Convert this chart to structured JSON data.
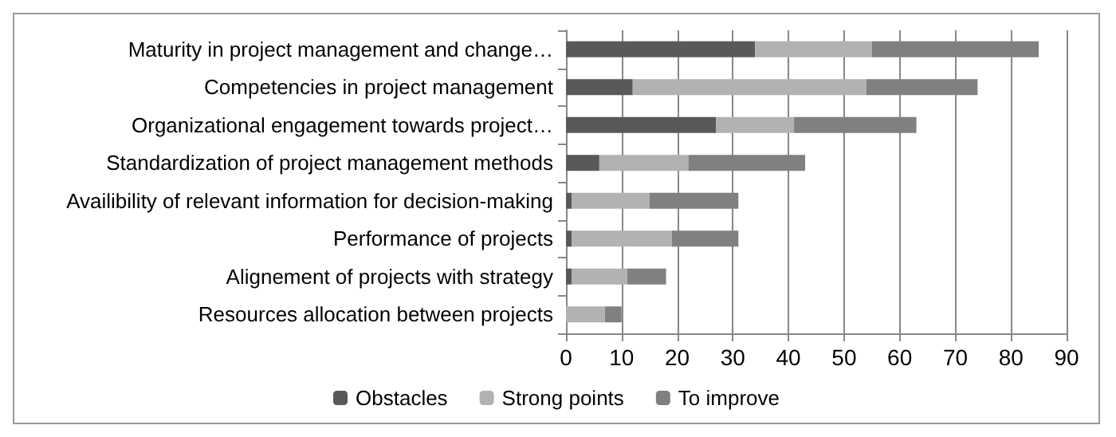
{
  "chart_data": {
    "type": "bar",
    "orientation": "horizontal",
    "stacked": true,
    "categories": [
      "Maturity in project management and change…",
      "Competencies in project management",
      "Organizational engagement towards project…",
      "Standardization of project management methods",
      "Availibility of relevant information for decision-making",
      "Performance of projects",
      "Alignement of projects with strategy",
      "Resources allocation between projects"
    ],
    "series": [
      {
        "name": "Obstacles",
        "color": "#595959",
        "values": [
          34,
          12,
          27,
          6,
          1,
          1,
          1,
          0
        ]
      },
      {
        "name": "Strong points",
        "color": "#b2b2b2",
        "values": [
          21,
          42,
          14,
          16,
          14,
          18,
          10,
          7
        ]
      },
      {
        "name": "To improve",
        "color": "#808080",
        "values": [
          30,
          20,
          22,
          21,
          16,
          12,
          7,
          3
        ]
      }
    ],
    "xlim": [
      0,
      90
    ],
    "xticks": [
      0,
      10,
      20,
      30,
      40,
      50,
      60,
      70,
      80,
      90
    ],
    "grid": "x",
    "legend": "bottom"
  }
}
